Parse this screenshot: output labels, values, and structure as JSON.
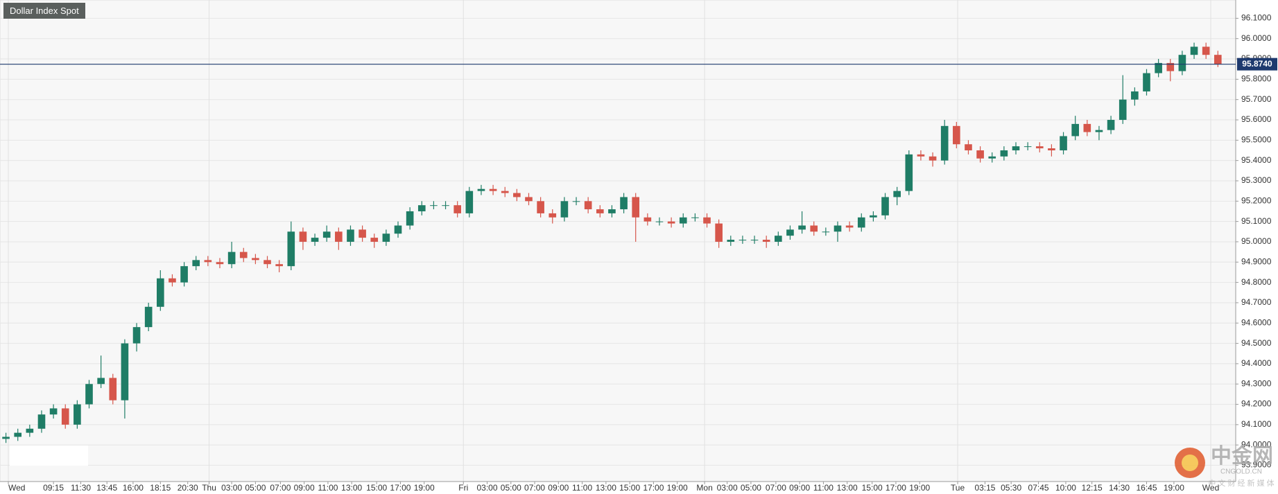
{
  "chart_data": {
    "type": "candlestick",
    "title": "Dollar Index Spot",
    "up_color": "#1f7d66",
    "down_color": "#d6564b",
    "open": [
      94.03,
      94.04,
      94.06,
      94.08,
      94.15,
      94.18,
      94.1,
      94.2,
      94.3,
      94.33,
      94.22,
      94.5,
      94.58,
      94.68,
      94.82,
      94.8,
      94.88,
      94.91,
      94.9,
      94.89,
      94.95,
      94.92,
      94.91,
      94.89,
      94.88,
      95.05,
      95.0,
      95.02,
      95.05,
      95.0,
      95.06,
      95.02,
      95.0,
      95.04,
      95.08,
      95.15,
      95.18,
      95.18,
      95.18,
      95.14,
      95.25,
      95.26,
      95.25,
      95.24,
      95.22,
      95.2,
      95.14,
      95.12,
      95.2,
      95.2,
      95.16,
      95.14,
      95.16,
      95.22,
      95.12,
      95.1,
      95.1,
      95.09,
      95.12,
      95.12,
      95.09,
      95.0,
      95.01,
      95.01,
      95.01,
      95.0,
      95.03,
      95.06,
      95.08,
      95.05,
      95.05,
      95.08,
      95.07,
      95.12,
      95.13,
      95.22,
      95.25,
      95.43,
      95.42,
      95.4,
      95.57,
      95.48,
      95.45,
      95.41,
      95.42,
      95.45,
      95.47,
      95.47,
      95.46,
      95.45,
      95.52,
      95.58,
      95.54,
      95.55,
      95.6,
      95.7,
      95.74,
      95.83,
      95.88,
      95.84,
      95.92,
      95.96,
      95.92
    ],
    "high": [
      94.06,
      94.08,
      94.1,
      94.17,
      94.2,
      94.2,
      94.22,
      94.32,
      94.44,
      94.35,
      94.52,
      94.6,
      94.7,
      94.86,
      94.84,
      94.9,
      94.93,
      94.93,
      94.92,
      95.0,
      94.97,
      94.94,
      94.93,
      94.91,
      95.1,
      95.07,
      95.04,
      95.08,
      95.07,
      95.08,
      95.08,
      95.04,
      95.06,
      95.1,
      95.17,
      95.2,
      95.2,
      95.2,
      95.2,
      95.27,
      95.28,
      95.28,
      95.27,
      95.26,
      95.24,
      95.22,
      95.16,
      95.22,
      95.22,
      95.22,
      95.18,
      95.18,
      95.24,
      95.24,
      95.14,
      95.12,
      95.12,
      95.14,
      95.14,
      95.14,
      95.11,
      95.03,
      95.03,
      95.03,
      95.03,
      95.05,
      95.08,
      95.15,
      95.1,
      95.07,
      95.1,
      95.1,
      95.14,
      95.15,
      95.24,
      95.27,
      95.45,
      95.45,
      95.44,
      95.6,
      95.59,
      95.5,
      95.47,
      95.44,
      95.47,
      95.49,
      95.49,
      95.49,
      95.48,
      95.54,
      95.62,
      95.6,
      95.57,
      95.62,
      95.82,
      95.76,
      95.85,
      95.9,
      95.9,
      95.94,
      95.98,
      95.98,
      95.94
    ],
    "low": [
      94.01,
      94.02,
      94.04,
      94.06,
      94.13,
      94.08,
      94.08,
      94.18,
      94.28,
      94.2,
      94.13,
      94.46,
      94.56,
      94.66,
      94.78,
      94.78,
      94.86,
      94.88,
      94.87,
      94.87,
      94.9,
      94.89,
      94.87,
      94.85,
      94.86,
      94.96,
      94.98,
      95.0,
      94.96,
      94.98,
      95.0,
      94.97,
      94.98,
      95.02,
      95.06,
      95.13,
      95.16,
      95.16,
      95.12,
      95.12,
      95.23,
      95.23,
      95.22,
      95.2,
      95.18,
      95.12,
      95.09,
      95.1,
      95.18,
      95.14,
      95.12,
      95.12,
      95.14,
      95.0,
      95.08,
      95.08,
      95.07,
      95.07,
      95.1,
      95.07,
      94.97,
      94.98,
      94.99,
      94.99,
      94.97,
      94.98,
      95.01,
      95.04,
      95.03,
      95.03,
      95.0,
      95.05,
      95.05,
      95.1,
      95.11,
      95.18,
      95.23,
      95.4,
      95.37,
      95.38,
      95.46,
      95.43,
      95.39,
      95.39,
      95.4,
      95.43,
      95.45,
      95.44,
      95.42,
      95.43,
      95.5,
      95.52,
      95.5,
      95.53,
      95.58,
      95.67,
      95.72,
      95.81,
      95.79,
      95.82,
      95.9,
      95.9,
      95.86
    ],
    "close": [
      94.04,
      94.06,
      94.08,
      94.15,
      94.18,
      94.1,
      94.2,
      94.3,
      94.33,
      94.22,
      94.5,
      94.58,
      94.68,
      94.82,
      94.8,
      94.88,
      94.91,
      94.9,
      94.89,
      94.95,
      94.92,
      94.91,
      94.89,
      94.88,
      95.05,
      95.0,
      95.02,
      95.05,
      95.0,
      95.06,
      95.02,
      95.0,
      95.04,
      95.08,
      95.15,
      95.18,
      95.18,
      95.18,
      95.14,
      95.25,
      95.26,
      95.25,
      95.24,
      95.22,
      95.2,
      95.14,
      95.12,
      95.2,
      95.2,
      95.16,
      95.14,
      95.16,
      95.22,
      95.12,
      95.1,
      95.1,
      95.09,
      95.12,
      95.12,
      95.09,
      95.0,
      95.01,
      95.01,
      95.01,
      95.0,
      95.03,
      95.06,
      95.08,
      95.05,
      95.05,
      95.08,
      95.07,
      95.12,
      95.13,
      95.22,
      95.25,
      95.43,
      95.42,
      95.4,
      95.57,
      95.48,
      95.45,
      95.41,
      95.42,
      95.45,
      95.47,
      95.47,
      95.46,
      95.45,
      95.52,
      95.58,
      95.54,
      95.55,
      95.6,
      95.7,
      95.74,
      95.83,
      95.88,
      95.84,
      95.92,
      95.96,
      95.92,
      95.874
    ],
    "last_price": {
      "value": 95.874,
      "label": "95.8740"
    },
    "last_price_color": "#1e3a6e",
    "xlim": [
      0,
      104
    ],
    "xticks": [
      {
        "value": 0.7,
        "label": "Wed"
      },
      {
        "value": 4.5,
        "label": "09:15"
      },
      {
        "value": 6.8,
        "label": "11:30"
      },
      {
        "value": 9,
        "label": "13:45"
      },
      {
        "value": 11.2,
        "label": "16:00"
      },
      {
        "value": 13.5,
        "label": "18:15"
      },
      {
        "value": 15.8,
        "label": "20:30"
      },
      {
        "value": 17.6,
        "label": "Thu"
      },
      {
        "value": 19.5,
        "label": "03:00"
      },
      {
        "value": 21.5,
        "label": "05:00"
      },
      {
        "value": 23.6,
        "label": "07:00"
      },
      {
        "value": 25.6,
        "label": "09:00"
      },
      {
        "value": 27.6,
        "label": "11:00"
      },
      {
        "value": 29.6,
        "label": "13:00"
      },
      {
        "value": 31.7,
        "label": "15:00"
      },
      {
        "value": 33.7,
        "label": "17:00"
      },
      {
        "value": 35.7,
        "label": "19:00"
      },
      {
        "value": 39,
        "label": "Fri"
      },
      {
        "value": 41,
        "label": "03:00"
      },
      {
        "value": 43,
        "label": "05:00"
      },
      {
        "value": 45,
        "label": "07:00"
      },
      {
        "value": 47,
        "label": "09:00"
      },
      {
        "value": 49,
        "label": "11:00"
      },
      {
        "value": 51,
        "label": "13:00"
      },
      {
        "value": 53,
        "label": "15:00"
      },
      {
        "value": 55,
        "label": "17:00"
      },
      {
        "value": 57,
        "label": "19:00"
      },
      {
        "value": 59.3,
        "label": "Mon"
      },
      {
        "value": 61.2,
        "label": "03:00"
      },
      {
        "value": 63.2,
        "label": "05:00"
      },
      {
        "value": 65.3,
        "label": "07:00"
      },
      {
        "value": 67.3,
        "label": "09:00"
      },
      {
        "value": 69.3,
        "label": "11:00"
      },
      {
        "value": 71.3,
        "label": "13:00"
      },
      {
        "value": 73.4,
        "label": "15:00"
      },
      {
        "value": 75.4,
        "label": "17:00"
      },
      {
        "value": 77.4,
        "label": "19:00"
      },
      {
        "value": 80.6,
        "label": "Tue"
      },
      {
        "value": 82.9,
        "label": "03:15"
      },
      {
        "value": 85.1,
        "label": "05:30"
      },
      {
        "value": 87.4,
        "label": "07:45"
      },
      {
        "value": 89.7,
        "label": "10:00"
      },
      {
        "value": 91.9,
        "label": "12:15"
      },
      {
        "value": 94.2,
        "label": "14:30"
      },
      {
        "value": 96.5,
        "label": "16:45"
      },
      {
        "value": 98.8,
        "label": "19:00"
      },
      {
        "value": 101.9,
        "label": "Wed"
      }
    ],
    "ylim": [
      93.82,
      96.19
    ],
    "yticks": [
      {
        "value": 93.9,
        "label": "93.9000"
      },
      {
        "value": 94,
        "label": "94.0000"
      },
      {
        "value": 94.1,
        "label": "94.1000"
      },
      {
        "value": 94.2,
        "label": "94.2000"
      },
      {
        "value": 94.3,
        "label": "94.3000"
      },
      {
        "value": 94.4,
        "label": "94.4000"
      },
      {
        "value": 94.5,
        "label": "94.5000"
      },
      {
        "value": 94.6,
        "label": "94.6000"
      },
      {
        "value": 94.7,
        "label": "94.7000"
      },
      {
        "value": 94.8,
        "label": "94.8000"
      },
      {
        "value": 94.9,
        "label": "94.9000"
      },
      {
        "value": 95,
        "label": "95.0000"
      },
      {
        "value": 95.1,
        "label": "95.1000"
      },
      {
        "value": 95.2,
        "label": "95.2000"
      },
      {
        "value": 95.3,
        "label": "95.3000"
      },
      {
        "value": 95.4,
        "label": "95.4000"
      },
      {
        "value": 95.5,
        "label": "95.5000"
      },
      {
        "value": 95.6,
        "label": "95.6000"
      },
      {
        "value": 95.7,
        "label": "95.7000"
      },
      {
        "value": 95.8,
        "label": "95.8000"
      },
      {
        "value": 95.9,
        "label": "95.9000"
      },
      {
        "value": 96,
        "label": "96.0000"
      },
      {
        "value": 96.1,
        "label": "96.1000"
      }
    ],
    "grid": true
  },
  "watermark": {
    "name": "中金网",
    "site": "CNGOLD.CN",
    "slogan": "中 文 财 经 新 媒 体"
  }
}
